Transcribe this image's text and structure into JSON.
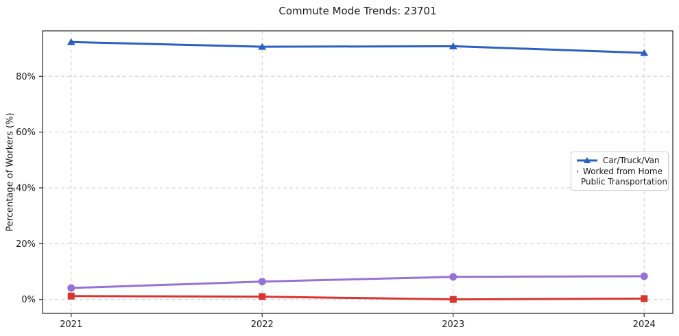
{
  "title": "Commute Mode Trends: 23701",
  "chart_data": {
    "type": "line",
    "title": "Commute Mode Trends: 23701",
    "xlabel": "",
    "ylabel": "Percentage of Workers (%)",
    "x": [
      2021,
      2022,
      2023,
      2024
    ],
    "series": [
      {
        "name": "Car/Truck/Van",
        "values": [
          92.3,
          90.6,
          90.8,
          88.4
        ],
        "color": "#2c5fc2",
        "marker": "triangle"
      },
      {
        "name": "Worked from Home",
        "values": [
          4.1,
          6.4,
          8.1,
          8.3
        ],
        "color": "#9672d6",
        "marker": "circle"
      },
      {
        "name": "Public Transportation",
        "values": [
          1.2,
          1.0,
          0.0,
          0.3
        ],
        "color": "#d9342f",
        "marker": "square"
      }
    ],
    "xticks": [
      2021,
      2022,
      2023,
      2024
    ],
    "xtick_labels": [
      "2021",
      "2022",
      "2023",
      "2024"
    ],
    "yticks": [
      0,
      20,
      40,
      60,
      80
    ],
    "ytick_labels": [
      "0%",
      "20%",
      "40%",
      "60%",
      "80%"
    ],
    "xlim": [
      2020.85,
      2024.15
    ],
    "ylim": [
      -5.0,
      96.3
    ],
    "grid": true,
    "grid_style": "dashed",
    "legend_position": "center right"
  },
  "colors": {
    "background": "#ffffff",
    "grid": "#cccccc",
    "spine": "#262626",
    "text": "#191919",
    "legend_border": "#cccccc",
    "series_blue": "#2c5fc2",
    "series_purple": "#9672d6",
    "series_red": "#d9342f"
  }
}
